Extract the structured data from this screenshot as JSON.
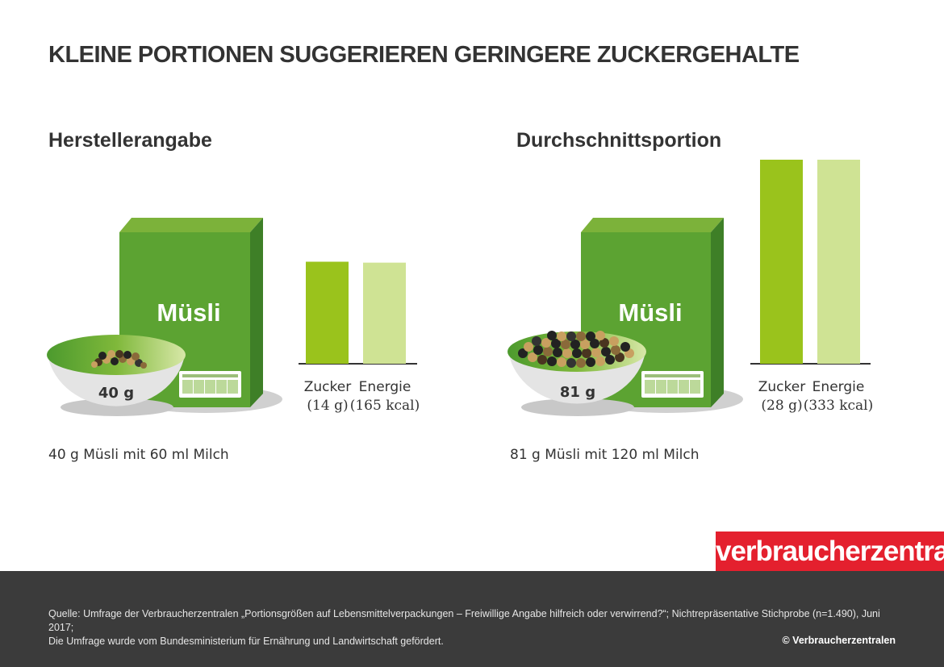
{
  "title": "KLEINE PORTIONEN SUGGERIEREN GERINGERE ZUCKERGEHALTE",
  "panels": [
    {
      "heading": "Herstellerangabe",
      "box_label": "Müsli",
      "bowl_label": "40 g",
      "caption": "40 g Müsli mit 60 ml Milch"
    },
    {
      "heading": "Durchschnittsportion",
      "box_label": "Müsli",
      "bowl_label": "81 g",
      "caption": "81 g Müsli mit 120 ml Milch"
    }
  ],
  "chart_data": [
    {
      "type": "bar",
      "categories": [
        "Zucker",
        "Energie"
      ],
      "category_values": [
        "(14 g)",
        "(165 kcal)"
      ],
      "values": [
        14,
        165
      ],
      "units": [
        "g",
        "kcal"
      ],
      "colors": [
        "#9ac31c",
        "#cfe394"
      ]
    },
    {
      "type": "bar",
      "categories": [
        "Zucker",
        "Energie"
      ],
      "category_values": [
        "(28 g)",
        "(333 kcal)"
      ],
      "values": [
        28,
        333
      ],
      "units": [
        "g",
        "kcal"
      ],
      "colors": [
        "#9ac31c",
        "#cfe394"
      ]
    }
  ],
  "logo": "verbraucherzentrale",
  "footer": {
    "source_line1": "Quelle: Umfrage der Verbraucherzentralen „Portionsgrößen auf Lebensmittelverpackungen – Freiwillige Angabe hilfreich oder verwirrend?“; Nichtrepräsentative Stichprobe (n=1.490), Juni 2017;",
    "source_line2": "Die Umfrage wurde vom Bundesministerium für Ernährung und Landwirtschaft gefördert.",
    "copyright": "© Verbraucherzentralen"
  }
}
